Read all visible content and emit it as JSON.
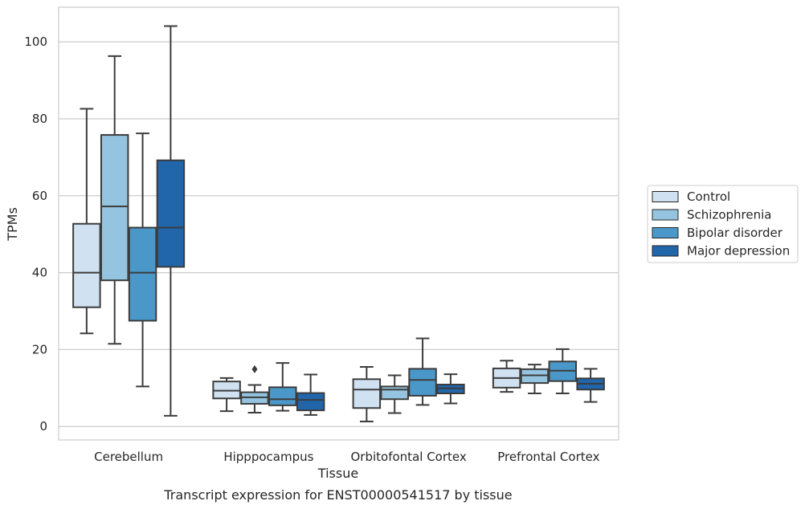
{
  "chart_data": {
    "type": "boxplot",
    "xlabel": "Tissue",
    "ylabel": "TPMs",
    "caption": "Transcript expression for ENST00000541517 by tissue",
    "ylim": [
      -3.5,
      109
    ],
    "yticks": [
      0,
      20,
      40,
      60,
      80,
      100
    ],
    "grid": true,
    "legend_placement": "right",
    "categories": [
      "Cerebellum",
      "Hipppocampus",
      "Orbitofontal Cortex",
      "Prefrontal Cortex"
    ],
    "series": [
      {
        "name": "Control",
        "color": "#d0e1f2",
        "boxes": [
          {
            "whislo": 24.2,
            "q1": 31.0,
            "med": 40.0,
            "q3": 52.7,
            "whishi": 82.6,
            "fliers": []
          },
          {
            "whislo": 4.0,
            "q1": 7.3,
            "med": 9.3,
            "q3": 11.7,
            "whishi": 12.6,
            "fliers": []
          },
          {
            "whislo": 1.3,
            "q1": 4.8,
            "med": 9.6,
            "q3": 12.3,
            "whishi": 15.5,
            "fliers": []
          },
          {
            "whislo": 9.0,
            "q1": 10.1,
            "med": 12.6,
            "q3": 15.1,
            "whishi": 17.1,
            "fliers": []
          }
        ]
      },
      {
        "name": "Schizophrenia",
        "color": "#94c4df",
        "boxes": [
          {
            "whislo": 21.5,
            "q1": 38.0,
            "med": 57.2,
            "q3": 75.8,
            "whishi": 96.3,
            "fliers": []
          },
          {
            "whislo": 3.6,
            "q1": 5.9,
            "med": 7.6,
            "q3": 8.9,
            "whishi": 10.8,
            "fliers": [
              14.9
            ]
          },
          {
            "whislo": 3.5,
            "q1": 7.1,
            "med": 9.6,
            "q3": 10.4,
            "whishi": 13.3,
            "fliers": []
          },
          {
            "whislo": 8.6,
            "q1": 11.3,
            "med": 13.3,
            "q3": 14.9,
            "whishi": 16.1,
            "fliers": []
          }
        ]
      },
      {
        "name": "Bipolar disorder",
        "color": "#4a98c9",
        "boxes": [
          {
            "whislo": 10.4,
            "q1": 27.5,
            "med": 40.0,
            "q3": 51.7,
            "whishi": 76.2,
            "fliers": []
          },
          {
            "whislo": 4.1,
            "q1": 5.5,
            "med": 7.1,
            "q3": 10.2,
            "whishi": 16.5,
            "fliers": []
          },
          {
            "whislo": 5.6,
            "q1": 8.0,
            "med": 12.1,
            "q3": 15.0,
            "whishi": 22.9,
            "fliers": []
          },
          {
            "whislo": 8.6,
            "q1": 11.8,
            "med": 14.5,
            "q3": 16.9,
            "whishi": 20.1,
            "fliers": []
          }
        ]
      },
      {
        "name": "Major depression",
        "color": "#2165ab",
        "boxes": [
          {
            "whislo": 2.8,
            "q1": 41.5,
            "med": 51.7,
            "q3": 69.2,
            "whishi": 104.1,
            "fliers": []
          },
          {
            "whislo": 3.0,
            "q1": 4.2,
            "med": 6.9,
            "q3": 8.7,
            "whishi": 13.5,
            "fliers": []
          },
          {
            "whislo": 6.0,
            "q1": 8.6,
            "med": 9.9,
            "q3": 10.9,
            "whishi": 13.6,
            "fliers": []
          },
          {
            "whislo": 6.4,
            "q1": 9.6,
            "med": 11.1,
            "q3": 12.5,
            "whishi": 15.0,
            "fliers": []
          }
        ]
      }
    ]
  }
}
